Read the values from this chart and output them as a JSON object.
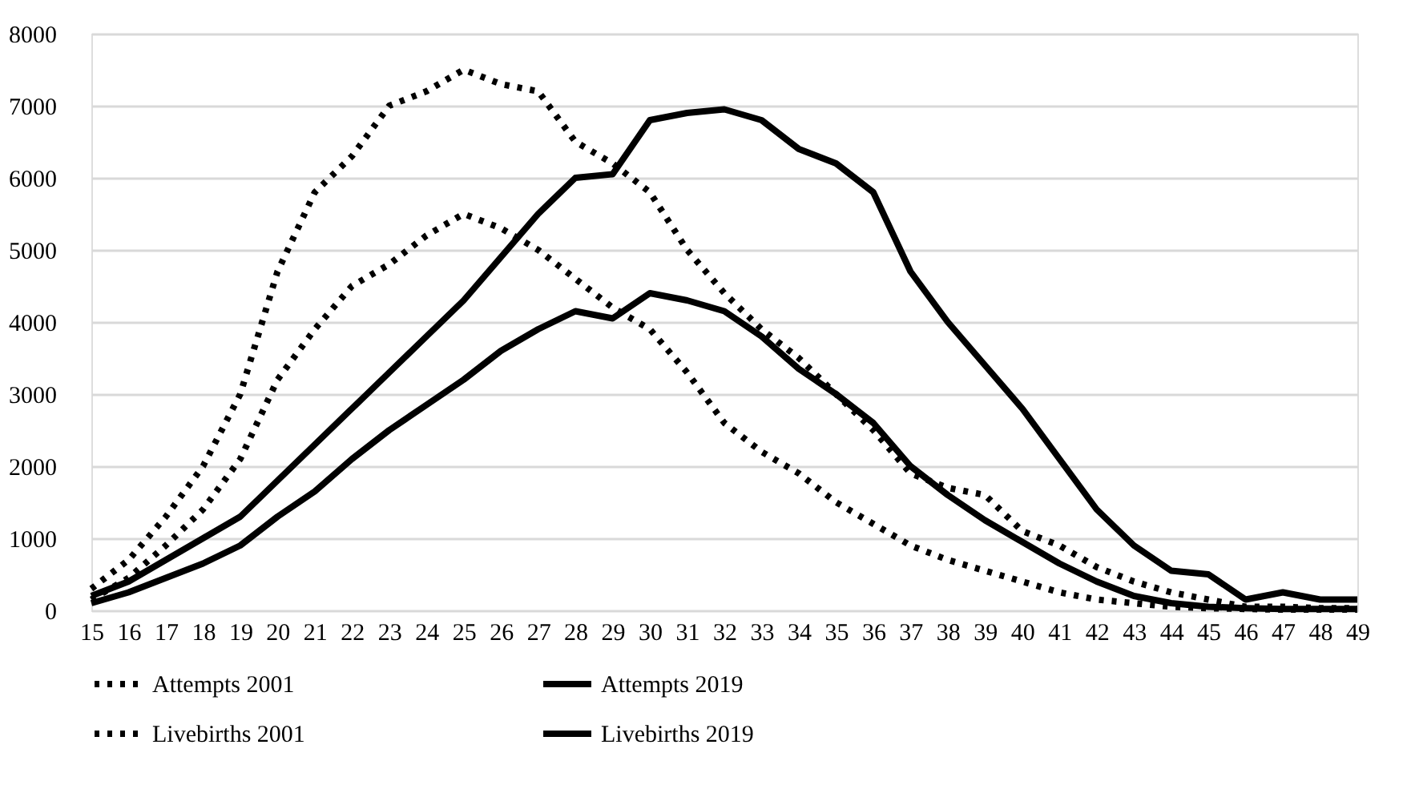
{
  "chart_data": {
    "type": "line",
    "categories": [
      "15",
      "16",
      "17",
      "18",
      "19",
      "20",
      "21",
      "22",
      "23",
      "24",
      "25",
      "26",
      "27",
      "28",
      "29",
      "30",
      "31",
      "32",
      "33",
      "34",
      "35",
      "36",
      "37",
      "38",
      "39",
      "40",
      "41",
      "42",
      "43",
      "44",
      "45",
      "46",
      "47",
      "48",
      "49"
    ],
    "ylim": [
      0,
      8000
    ],
    "yticks": [
      0,
      1000,
      2000,
      3000,
      4000,
      5000,
      6000,
      7000,
      8000
    ],
    "grid": "y",
    "legend": "bottom",
    "marker": "none",
    "series": [
      {
        "name": "Attempts 2001",
        "color": "#000000",
        "line_style": "dotted",
        "values": [
          300,
          700,
          1300,
          2000,
          3000,
          4700,
          5800,
          6300,
          7000,
          7200,
          7500,
          7300,
          7200,
          6500,
          6200,
          5800,
          5000,
          4400,
          3900,
          3500,
          3000,
          2500,
          1900,
          1700,
          1600,
          1100,
          900,
          600,
          400,
          250,
          150,
          50,
          50,
          30,
          30
        ]
      },
      {
        "name": "Attempts 2019",
        "color": "#000000",
        "line_style": "solid",
        "values": [
          200,
          400,
          700,
          1000,
          1300,
          1800,
          2300,
          2800,
          3300,
          3800,
          4300,
          4900,
          5500,
          6000,
          6050,
          6800,
          6900,
          6950,
          6800,
          6400,
          6200,
          5800,
          4700,
          4000,
          3400,
          2800,
          2100,
          1400,
          900,
          550,
          500,
          150,
          250,
          150,
          150
        ]
      },
      {
        "name": "Livebirths 2001",
        "color": "#000000",
        "line_style": "dotted",
        "values": [
          150,
          450,
          900,
          1400,
          2100,
          3200,
          3900,
          4500,
          4800,
          5200,
          5500,
          5300,
          5000,
          4600,
          4200,
          3900,
          3300,
          2600,
          2200,
          1900,
          1500,
          1200,
          900,
          700,
          550,
          400,
          250,
          150,
          100,
          50,
          30,
          20,
          10,
          10,
          10
        ]
      },
      {
        "name": "Livebirths 2019",
        "color": "#000000",
        "line_style": "solid",
        "values": [
          100,
          250,
          450,
          650,
          900,
          1300,
          1650,
          2100,
          2500,
          2850,
          3200,
          3600,
          3900,
          4150,
          4050,
          4400,
          4300,
          4150,
          3800,
          3350,
          3000,
          2600,
          2000,
          1600,
          1250,
          950,
          650,
          400,
          200,
          100,
          50,
          30,
          20,
          20,
          20
        ]
      }
    ]
  }
}
